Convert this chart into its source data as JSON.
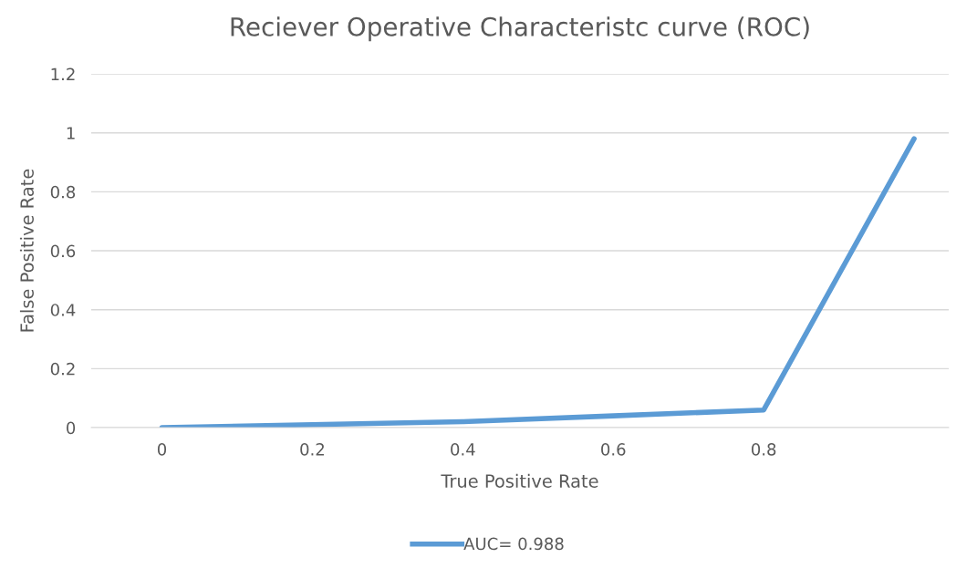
{
  "chart_data": {
    "type": "line",
    "title": "Reciever Operative Characteristc curve (ROC)",
    "xlabel": "True Positive Rate",
    "ylabel": "False Positive Rate",
    "categories": [
      "0",
      "0.2",
      "0.4",
      "0.6",
      "0.8",
      null
    ],
    "series": [
      {
        "name": "AUC= 0.988",
        "color": "#5b9bd5",
        "values": [
          0,
          0.01,
          0.02,
          0.04,
          0.06,
          0.98
        ]
      }
    ],
    "ylim": [
      0,
      1.2
    ],
    "yticks": [
      0,
      0.2,
      0.4,
      0.6,
      0.8,
      1,
      1.2
    ],
    "grid": "y",
    "legend": "bottom",
    "marker": "none",
    "line_style": "solid"
  }
}
